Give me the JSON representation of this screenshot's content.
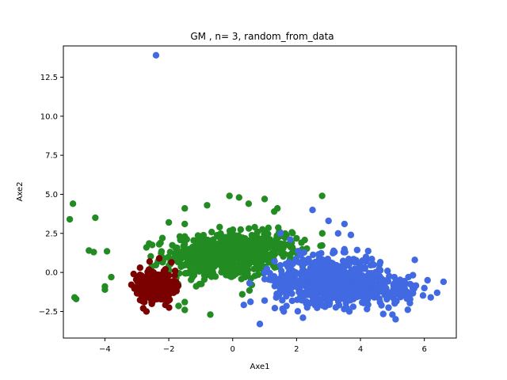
{
  "chart_data": {
    "type": "scatter",
    "title": "GM , n= 3, random_from_data",
    "xlabel": "Axe1",
    "ylabel": "Axe2",
    "xlim": [
      -5.3,
      7.0
    ],
    "ylim": [
      -4.2,
      14.5
    ],
    "xticks": [
      -4,
      -2,
      0,
      2,
      4,
      6
    ],
    "yticks": [
      -2.5,
      0.0,
      2.5,
      5.0,
      7.5,
      10.0,
      12.5
    ],
    "xtick_labels": [
      "−4",
      "−2",
      "0",
      "2",
      "4",
      "6"
    ],
    "ytick_labels": [
      "−2.5",
      "0.0",
      "2.5",
      "5.0",
      "7.5",
      "10.0",
      "12.5"
    ],
    "grid": false,
    "legend": "none",
    "series": [
      {
        "color": "#228b22",
        "clusters": [
          {
            "center": [
              -0.3,
              1.0
            ],
            "spread": [
              1.2,
              1.0
            ],
            "count": 500
          },
          {
            "center": [
              1.0,
              1.8
            ],
            "spread": [
              0.8,
              0.7
            ],
            "count": 140
          }
        ],
        "points": [
          [
            -5.0,
            4.4
          ],
          [
            -5.1,
            3.4
          ],
          [
            -4.3,
            3.5
          ],
          [
            -4.5,
            1.4
          ],
          [
            -4.35,
            1.3
          ],
          [
            -3.8,
            -0.3
          ],
          [
            -4.0,
            -0.9
          ],
          [
            -4.0,
            -1.1
          ],
          [
            -4.95,
            -1.6
          ],
          [
            -4.9,
            -1.7
          ],
          [
            -1.5,
            4.1
          ],
          [
            -0.8,
            4.3
          ],
          [
            -0.1,
            4.9
          ],
          [
            0.2,
            4.8
          ],
          [
            0.5,
            4.4
          ],
          [
            1.0,
            4.7
          ],
          [
            1.3,
            3.9
          ],
          [
            1.4,
            4.1
          ],
          [
            2.8,
            4.9
          ],
          [
            -2.0,
            3.2
          ],
          [
            -1.5,
            3.1
          ],
          [
            -1.5,
            -2.4
          ],
          [
            -1.5,
            -1.9
          ],
          [
            -0.7,
            -2.7
          ],
          [
            0.6,
            -0.8
          ],
          [
            -1.5,
            2.3
          ],
          [
            -2.2,
            2.2
          ],
          [
            -2.3,
            1.8
          ],
          [
            -2.7,
            1.6
          ],
          [
            0.3,
            -1.4
          ]
        ]
      },
      {
        "color": "#7b0000",
        "clusters": [
          {
            "center": [
              -2.35,
              -0.9
            ],
            "spread": [
              0.35,
              0.6
            ],
            "count": 480
          }
        ],
        "points": [
          [
            -2.8,
            -2.3
          ],
          [
            -2.7,
            -2.5
          ],
          [
            -3.1,
            -0.1
          ],
          [
            -2.9,
            0.3
          ],
          [
            -2.6,
            0.7
          ],
          [
            -2.3,
            0.9
          ],
          [
            -1.8,
            0.1
          ]
        ]
      },
      {
        "color": "#4169e1",
        "clusters": [
          {
            "center": [
              3.0,
              -0.5
            ],
            "spread": [
              1.1,
              1.0
            ],
            "count": 650
          },
          {
            "center": [
              4.8,
              -1.2
            ],
            "spread": [
              0.7,
              0.6
            ],
            "count": 120
          }
        ],
        "points": [
          [
            -2.4,
            13.9
          ],
          [
            0.85,
            -3.3
          ],
          [
            2.5,
            4.0
          ],
          [
            3.0,
            3.3
          ],
          [
            3.5,
            3.1
          ],
          [
            3.3,
            2.5
          ],
          [
            3.7,
            2.4
          ],
          [
            5.7,
            0.8
          ],
          [
            6.6,
            -0.6
          ],
          [
            6.1,
            -0.5
          ],
          [
            5.5,
            -0.3
          ],
          [
            6.4,
            -1.3
          ],
          [
            6.2,
            -1.6
          ],
          [
            5.1,
            -3.0
          ],
          [
            5.0,
            -2.7
          ],
          [
            2.2,
            -2.9
          ],
          [
            1.6,
            -2.5
          ],
          [
            1.0,
            -1.8
          ],
          [
            1.0,
            0.0
          ],
          [
            1.8,
            2.1
          ],
          [
            1.5,
            2.5
          ],
          [
            6.0,
            -1.0
          ]
        ]
      }
    ]
  }
}
